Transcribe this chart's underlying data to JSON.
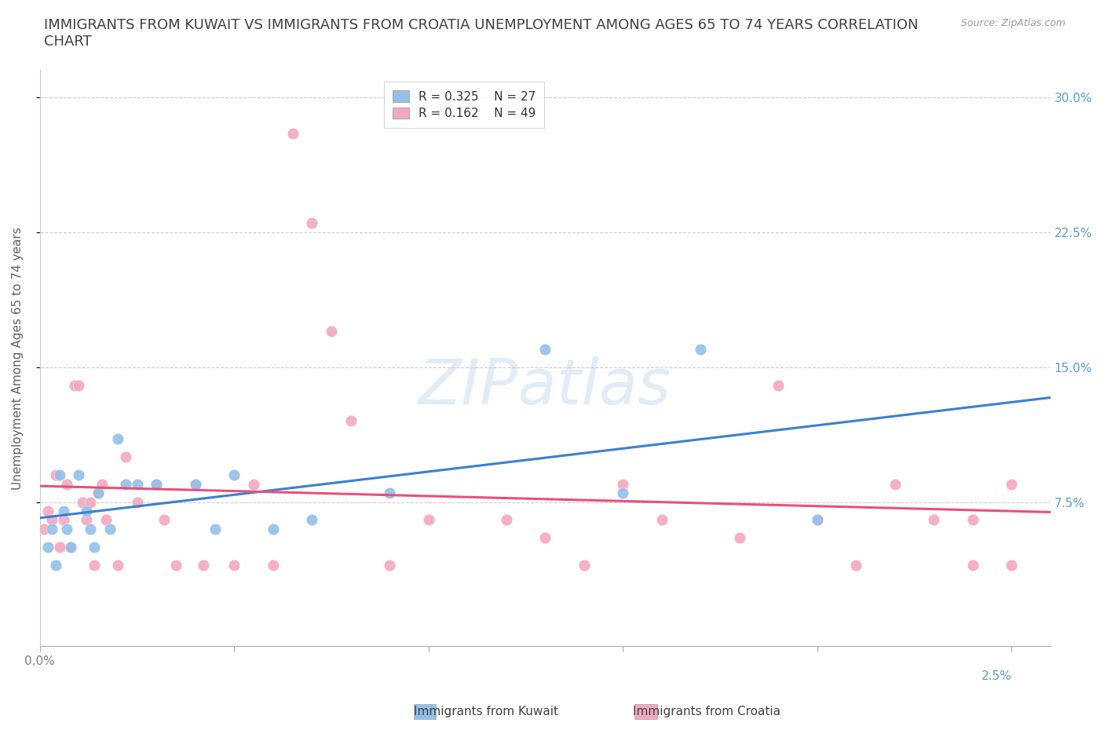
{
  "title": "IMMIGRANTS FROM KUWAIT VS IMMIGRANTS FROM CROATIA UNEMPLOYMENT AMONG AGES 65 TO 74 YEARS CORRELATION\nCHART",
  "source_text": "Source: ZipAtlas.com",
  "ylabel": "Unemployment Among Ages 65 to 74 years",
  "kuwait_label": "Immigrants from Kuwait",
  "croatia_label": "Immigrants from Croatia",
  "R_kuwait": 0.325,
  "N_kuwait": 27,
  "R_croatia": 0.162,
  "N_croatia": 49,
  "kuwait_color": "#92C0E8",
  "croatia_color": "#F4A8C0",
  "kuwait_line_color": "#3A7FD5",
  "croatia_line_color": "#E8507A",
  "background_color": "#FFFFFF",
  "xlim": [
    0.0,
    0.026
  ],
  "ylim": [
    -0.005,
    0.315
  ],
  "yticks": [
    0.075,
    0.15,
    0.225,
    0.3
  ],
  "ytick_labels": [
    "7.5%",
    "15.0%",
    "22.5%",
    "30.0%"
  ],
  "xticks": [
    0.0,
    0.005,
    0.01,
    0.015,
    0.02,
    0.025
  ],
  "xtick_label_left": "0.0%",
  "xtick_label_right": "2.5%",
  "kuwait_x": [
    0.0002,
    0.0003,
    0.0004,
    0.0005,
    0.0006,
    0.0007,
    0.0008,
    0.001,
    0.0012,
    0.0013,
    0.0014,
    0.0015,
    0.0018,
    0.002,
    0.0022,
    0.0025,
    0.003,
    0.004,
    0.0045,
    0.005,
    0.006,
    0.007,
    0.009,
    0.013,
    0.015,
    0.017,
    0.02
  ],
  "kuwait_y": [
    0.05,
    0.06,
    0.04,
    0.09,
    0.07,
    0.06,
    0.05,
    0.09,
    0.07,
    0.06,
    0.05,
    0.08,
    0.06,
    0.11,
    0.085,
    0.085,
    0.085,
    0.085,
    0.06,
    0.09,
    0.06,
    0.065,
    0.08,
    0.16,
    0.08,
    0.16,
    0.065
  ],
  "croatia_x": [
    0.0001,
    0.0002,
    0.0003,
    0.0004,
    0.0005,
    0.0006,
    0.0007,
    0.0008,
    0.0009,
    0.001,
    0.0011,
    0.0012,
    0.0013,
    0.0014,
    0.0015,
    0.0016,
    0.0017,
    0.002,
    0.0022,
    0.0025,
    0.003,
    0.0032,
    0.0035,
    0.004,
    0.0042,
    0.005,
    0.0055,
    0.006,
    0.0065,
    0.007,
    0.0075,
    0.008,
    0.009,
    0.01,
    0.012,
    0.013,
    0.014,
    0.015,
    0.016,
    0.018,
    0.019,
    0.02,
    0.021,
    0.022,
    0.023,
    0.024,
    0.024,
    0.025,
    0.025
  ],
  "croatia_y": [
    0.06,
    0.07,
    0.065,
    0.09,
    0.05,
    0.065,
    0.085,
    0.05,
    0.14,
    0.14,
    0.075,
    0.065,
    0.075,
    0.04,
    0.08,
    0.085,
    0.065,
    0.04,
    0.1,
    0.075,
    0.085,
    0.065,
    0.04,
    0.085,
    0.04,
    0.04,
    0.085,
    0.04,
    0.28,
    0.23,
    0.17,
    0.12,
    0.04,
    0.065,
    0.065,
    0.055,
    0.04,
    0.085,
    0.065,
    0.055,
    0.14,
    0.065,
    0.04,
    0.085,
    0.065,
    0.04,
    0.065,
    0.085,
    0.04
  ],
  "watermark_text": "ZIPatlas",
  "grid_color": "#CCCCCC",
  "title_color": "#404040",
  "axis_label_color": "#606060",
  "tick_label_color_right": "#5B9BD5",
  "title_fontsize": 13,
  "axis_label_fontsize": 11,
  "tick_fontsize": 11,
  "legend_fontsize": 11,
  "legend_r_color": "#3A7FD5",
  "legend_n_color": "#3A7FD5"
}
